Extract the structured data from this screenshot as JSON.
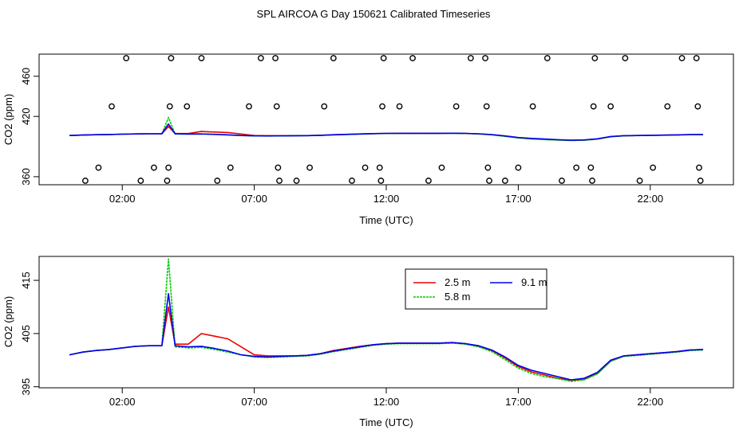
{
  "title": "SPL AIRCOA G  Day 150621  Calibrated Timeseries",
  "colors": {
    "s1": "#ee0000",
    "s2": "#00cc00",
    "s3": "#0000ee",
    "axis": "#000000"
  },
  "chart_data": [
    {
      "type": "scatter",
      "xlabel": "Time (UTC)",
      "ylabel": "CO2 (ppm)",
      "xticks": [
        2,
        7,
        12,
        17,
        22
      ],
      "xticklabels": [
        "02:00",
        "07:00",
        "12:00",
        "17:00",
        "22:00"
      ],
      "yticks": [
        360,
        420,
        460
      ],
      "yticklabels": [
        "360",
        "420",
        "460"
      ],
      "xlim": [
        -1.15,
        25.15
      ],
      "ylim": [
        352,
        482
      ],
      "flags": [
        {
          "x": 0.6,
          "y": 356
        },
        {
          "x": 1.1,
          "y": 369
        },
        {
          "x": 1.6,
          "y": 430
        },
        {
          "x": 2.15,
          "y": 478
        },
        {
          "x": 2.7,
          "y": 356
        },
        {
          "x": 3.2,
          "y": 369
        },
        {
          "x": 3.7,
          "y": 356
        },
        {
          "x": 3.75,
          "y": 369
        },
        {
          "x": 3.8,
          "y": 430
        },
        {
          "x": 3.85,
          "y": 478
        },
        {
          "x": 4.45,
          "y": 430
        },
        {
          "x": 5.0,
          "y": 478
        },
        {
          "x": 5.6,
          "y": 356
        },
        {
          "x": 6.1,
          "y": 369
        },
        {
          "x": 6.8,
          "y": 430
        },
        {
          "x": 7.25,
          "y": 478
        },
        {
          "x": 7.8,
          "y": 478
        },
        {
          "x": 7.85,
          "y": 430
        },
        {
          "x": 7.9,
          "y": 369
        },
        {
          "x": 7.95,
          "y": 356
        },
        {
          "x": 8.6,
          "y": 356
        },
        {
          "x": 9.1,
          "y": 369
        },
        {
          "x": 9.65,
          "y": 430
        },
        {
          "x": 10.0,
          "y": 478
        },
        {
          "x": 10.7,
          "y": 356
        },
        {
          "x": 11.2,
          "y": 369
        },
        {
          "x": 11.75,
          "y": 369
        },
        {
          "x": 11.8,
          "y": 356
        },
        {
          "x": 11.85,
          "y": 430
        },
        {
          "x": 11.9,
          "y": 478
        },
        {
          "x": 12.5,
          "y": 430
        },
        {
          "x": 13.0,
          "y": 478
        },
        {
          "x": 13.6,
          "y": 356
        },
        {
          "x": 14.1,
          "y": 369
        },
        {
          "x": 14.65,
          "y": 430
        },
        {
          "x": 15.2,
          "y": 478
        },
        {
          "x": 15.75,
          "y": 478
        },
        {
          "x": 15.8,
          "y": 430
        },
        {
          "x": 15.85,
          "y": 369
        },
        {
          "x": 15.9,
          "y": 356
        },
        {
          "x": 16.5,
          "y": 356
        },
        {
          "x": 17.0,
          "y": 369
        },
        {
          "x": 17.55,
          "y": 430
        },
        {
          "x": 18.1,
          "y": 478
        },
        {
          "x": 18.65,
          "y": 356
        },
        {
          "x": 19.2,
          "y": 369
        },
        {
          "x": 19.75,
          "y": 369
        },
        {
          "x": 19.8,
          "y": 356
        },
        {
          "x": 19.85,
          "y": 430
        },
        {
          "x": 19.9,
          "y": 478
        },
        {
          "x": 20.5,
          "y": 430
        },
        {
          "x": 21.05,
          "y": 478
        },
        {
          "x": 21.6,
          "y": 356
        },
        {
          "x": 22.1,
          "y": 369
        },
        {
          "x": 22.65,
          "y": 430
        },
        {
          "x": 23.2,
          "y": 478
        },
        {
          "x": 23.75,
          "y": 478
        },
        {
          "x": 23.8,
          "y": 430
        },
        {
          "x": 23.85,
          "y": 369
        },
        {
          "x": 23.9,
          "y": 356
        }
      ],
      "x": [
        0,
        0.5,
        1,
        1.5,
        2,
        2.5,
        3,
        3.5,
        3.75,
        4,
        4.5,
        5,
        5.5,
        6,
        6.5,
        7,
        7.5,
        8,
        8.5,
        9,
        9.5,
        10,
        10.5,
        11,
        11.5,
        12,
        12.5,
        13,
        13.5,
        14,
        14.5,
        15,
        15.5,
        16,
        16.5,
        17,
        17.5,
        18,
        18.5,
        19,
        19.5,
        20,
        20.5,
        21,
        21.5,
        22,
        22.5,
        23,
        23.5,
        24
      ],
      "series": [
        {
          "name": "2.5 m",
          "color": "#ee0000",
          "values": [
            401,
            401.5,
            401.8,
            402,
            402.3,
            402.6,
            402.7,
            402.7,
            410,
            403,
            403,
            405,
            404.5,
            404,
            402.5,
            401,
            400.8,
            400.8,
            400.8,
            400.9,
            401.2,
            401.8,
            402.2,
            402.6,
            402.9,
            403.1,
            403.2,
            403.2,
            403.2,
            403.2,
            403.3,
            403.1,
            402.6,
            401.8,
            400.4,
            398.8,
            397.8,
            397.2,
            396.6,
            396.2,
            396.4,
            397.5,
            399.8,
            400.8,
            401,
            401.2,
            401.4,
            401.6,
            401.9,
            402
          ]
        },
        {
          "name": "5.8 m",
          "color": "#00cc00",
          "values": [
            401,
            401.5,
            401.8,
            402,
            402.3,
            402.6,
            402.7,
            402.7,
            419,
            402.5,
            402.3,
            402.4,
            402,
            401.5,
            401,
            400.6,
            400.5,
            400.6,
            400.7,
            400.8,
            401.1,
            401.6,
            402,
            402.4,
            402.8,
            403,
            403.1,
            403.1,
            403.1,
            403.1,
            403.2,
            403,
            402.5,
            401.6,
            400.1,
            398.5,
            397.5,
            396.9,
            396.5,
            396,
            396.3,
            397.4,
            399.8,
            400.7,
            400.9,
            401.1,
            401.3,
            401.5,
            401.8,
            401.9
          ]
        },
        {
          "name": "9.1 m",
          "color": "#0000ee",
          "values": [
            401,
            401.5,
            401.8,
            402,
            402.3,
            402.6,
            402.7,
            402.7,
            412.5,
            402.7,
            402.5,
            402.6,
            402.2,
            401.7,
            401,
            400.7,
            400.6,
            400.7,
            400.8,
            400.9,
            401.2,
            401.7,
            402.1,
            402.5,
            402.9,
            403.1,
            403.2,
            403.2,
            403.2,
            403.2,
            403.3,
            403.1,
            402.7,
            401.9,
            400.6,
            399,
            398.1,
            397.5,
            396.9,
            396.3,
            396.6,
            397.7,
            400,
            400.8,
            401,
            401.2,
            401.4,
            401.6,
            401.9,
            402
          ]
        }
      ]
    },
    {
      "type": "line",
      "xlabel": "Time (UTC)",
      "ylabel": "CO2 (ppm)",
      "xticks": [
        2,
        7,
        12,
        17,
        22
      ],
      "xticklabels": [
        "02:00",
        "07:00",
        "12:00",
        "17:00",
        "22:00"
      ],
      "yticks": [
        395,
        405,
        415
      ],
      "yticklabels": [
        "395",
        "405",
        "415"
      ],
      "xlim": [
        -1.15,
        25.15
      ],
      "ylim": [
        394.8,
        419.5
      ],
      "legend": "top-center",
      "legend_entries": [
        "2.5 m",
        "9.1 m",
        "5.8 m"
      ]
    }
  ]
}
